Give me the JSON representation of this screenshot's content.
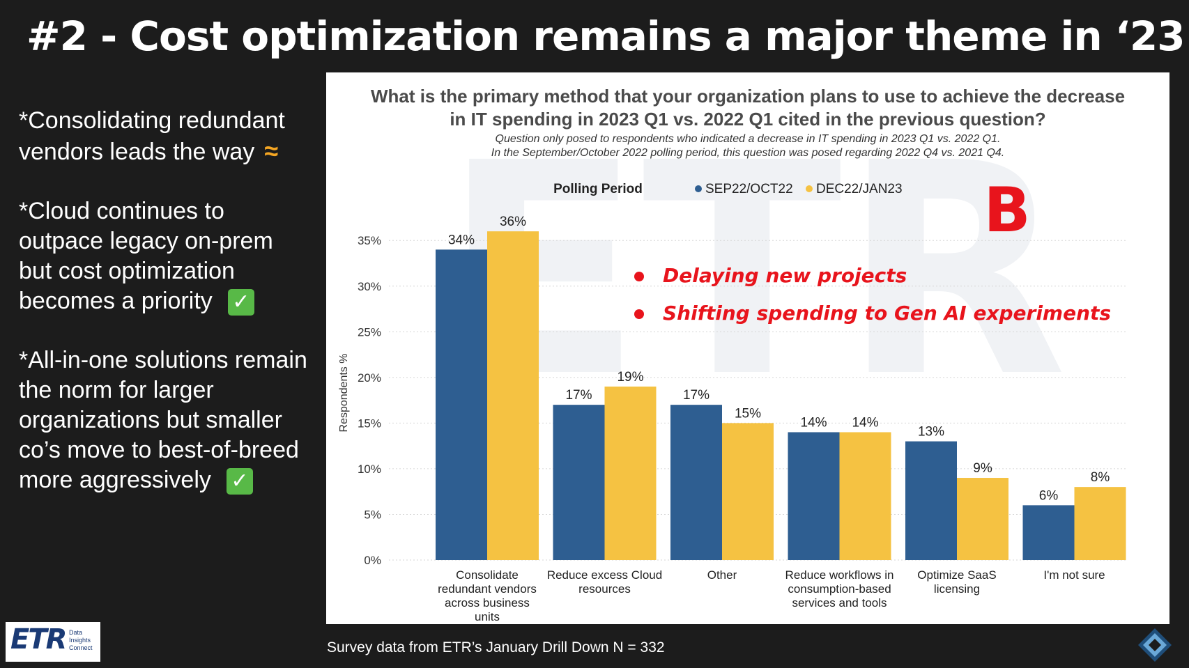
{
  "slide": {
    "title": "#2 - Cost optimization remains a major theme in ‘23",
    "bullets": [
      {
        "text": "*Consolidating redundant\nvendors leads the way",
        "marker": "≈",
        "marker_icon": "approx-icon"
      },
      {
        "text": "*Cloud continues to\noutpace legacy on-prem\nbut cost optimization\nbecomes a priority",
        "marker": "✓",
        "marker_icon": "check-icon"
      },
      {
        "text": "*All-in-one solutions remain\nthe norm for larger\norganizations but smaller\nco’s move to best-of-breed\nmore aggressively",
        "marker": "✓",
        "marker_icon": "check-icon"
      }
    ],
    "footer": "Survey data from ETR’s January Drill Down N = 332",
    "logo": {
      "main": "ETR",
      "sub": "Data\nInsights\nConnect"
    },
    "colors": {
      "background": "#1c1c1c",
      "approx": "#f5a623",
      "check": "#58b947",
      "annotation": "#e8141c"
    }
  },
  "chart_data": {
    "type": "bar",
    "title": "What is the primary method that your organization plans to use to achieve the decrease in IT spending in 2023 Q1 vs. 2022 Q1 cited in the previous question?",
    "subtitle": [
      "Question only posed to respondents who indicated a decrease in IT spending in 2023 Q1 vs. 2022 Q1.",
      "In the September/October 2022 polling period, this question was posed regarding 2022 Q4 vs. 2021 Q4."
    ],
    "legend_title": "Polling Period",
    "legend_position": "top-center",
    "ylabel": "Respondents %",
    "xlabel": "",
    "ylim": [
      0,
      0.37
    ],
    "yticks": [
      "0%",
      "5%",
      "10%",
      "15%",
      "20%",
      "25%",
      "30%",
      "35%"
    ],
    "grid": true,
    "categories": [
      "Consolidate redundant vendors across business units",
      "Reduce excess Cloud resources",
      "Other",
      "Reduce workflows in consumption-based services and tools",
      "Optimize SaaS licensing",
      "I'm not sure"
    ],
    "series": [
      {
        "name": "SEP22/OCT22",
        "color": "#2e5e91",
        "values": [
          0.34,
          0.17,
          0.17,
          0.14,
          0.13,
          0.06
        ],
        "labels": [
          "34%",
          "17%",
          "17%",
          "14%",
          "13%",
          "6%"
        ]
      },
      {
        "name": "DEC22/JAN23",
        "color": "#f5c242",
        "values": [
          0.36,
          0.19,
          0.15,
          0.14,
          0.09,
          0.08
        ],
        "labels": [
          "36%",
          "19%",
          "15%",
          "14%",
          "9%",
          "8%"
        ]
      }
    ],
    "annotations": {
      "badge": "B",
      "items": [
        "Delaying new projects",
        "Shifting spending to Gen AI experiments"
      ]
    }
  }
}
